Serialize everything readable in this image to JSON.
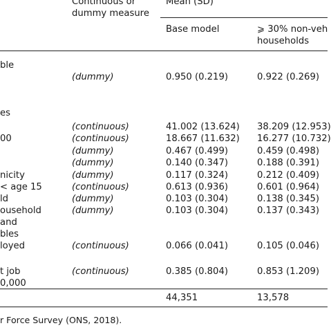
{
  "header": {
    "measure_type_line1": "Continuous or",
    "measure_type_line2": "dummy measure",
    "mean_sd": "Mean (SD)",
    "col_base": "Base model",
    "col_nonveh_line1": "⩾ 30% non-veh",
    "col_nonveh_line2": "households"
  },
  "left_fragments": [
    "ble",
    "es",
    "00",
    "nicity",
    "<   age 15",
    "ld",
    "ousehold",
    "and",
    "bles",
    "loyed",
    "t job",
    "0,000"
  ],
  "rows": [
    {
      "measure": "(dummy)",
      "base": "0.950 (0.219)",
      "nonveh": "0.922 (0.269)"
    },
    {
      "measure": "(continuous)",
      "base": "41.002 (13.624)",
      "nonveh": "38.209 (12.953)"
    },
    {
      "measure": "(continuous)",
      "base": "18.667 (11.632)",
      "nonveh": "16.277 (10.732)"
    },
    {
      "measure": "(dummy)",
      "base": "0.467 (0.499)",
      "nonveh": "0.459 (0.498)"
    },
    {
      "measure": "(dummy)",
      "base": "0.140 (0.347)",
      "nonveh": "0.188 (0.391)"
    },
    {
      "measure": "(dummy)",
      "base": "0.117 (0.324)",
      "nonveh": "0.212 (0.409)"
    },
    {
      "measure": "(continuous)",
      "base": "0.613 (0.936)",
      "nonveh": "0.601 (0.964)"
    },
    {
      "measure": "(dummy)",
      "base": "0.103 (0.304)",
      "nonveh": "0.138 (0.345)"
    },
    {
      "measure": "(dummy)",
      "base": "0.103 (0.304)",
      "nonveh": "0.137 (0.343)"
    },
    {
      "measure": "(continuous)",
      "base": "0.066 (0.041)",
      "nonveh": "0.105 (0.046)"
    },
    {
      "measure": "(continuous)",
      "base": "0.385 (0.804)",
      "nonveh": "0.853 (1.209)"
    }
  ],
  "totals": {
    "base": "44,351",
    "nonveh": "13,578"
  },
  "footer": "r Force Survey (ONS, 2018)."
}
